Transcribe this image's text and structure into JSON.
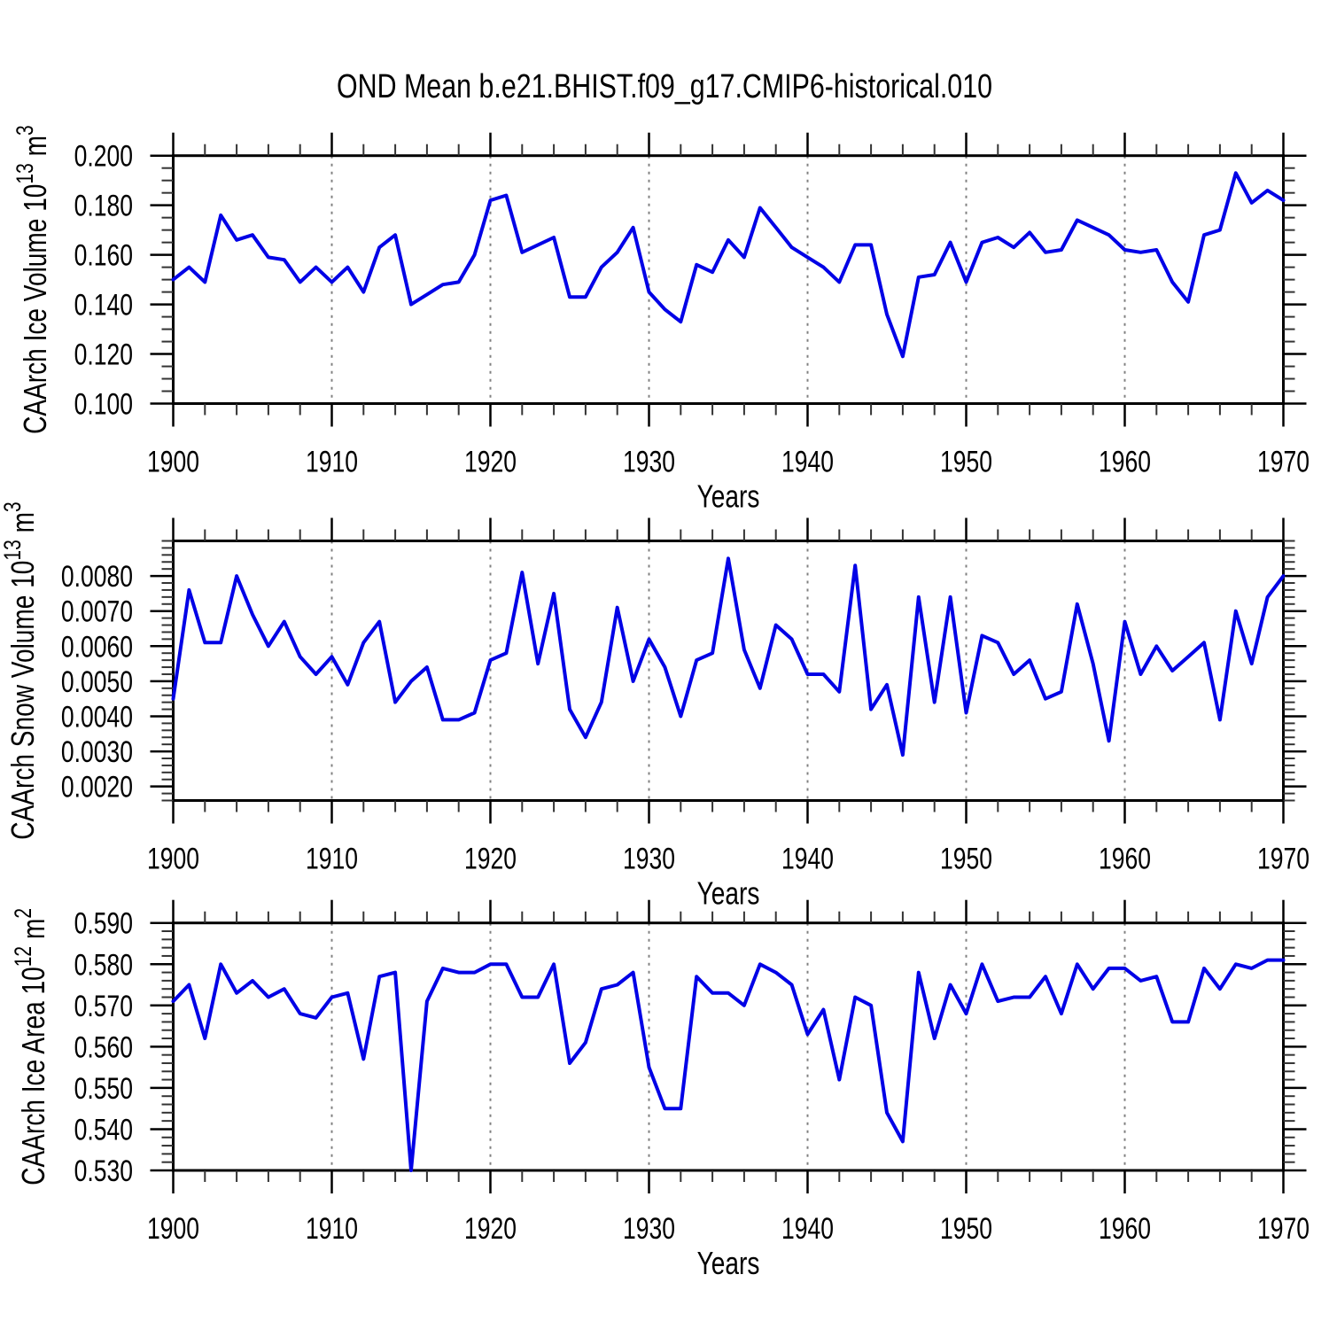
{
  "title": "OND Mean b.e21.BHIST.f09_g17.CMIP6-historical.010",
  "line_color": "#0101e6",
  "grid_color": "#808080",
  "axis_color": "#000000",
  "chart_data": [
    {
      "type": "line",
      "name": "ice-volume",
      "xlabel": "Years",
      "ylabel": "CAArch Ice Volume 10^13 m^3",
      "ylabel_parts": {
        "prefix": "CAArch Ice Volume 10",
        "exp": "13",
        "unit": " m",
        "unit_exp": "3"
      },
      "xlim": [
        1900,
        1970
      ],
      "ylim": [
        0.1,
        0.2
      ],
      "xticks": [
        1900,
        1910,
        1920,
        1930,
        1940,
        1950,
        1960,
        1970
      ],
      "xtick_labels": [
        "1900",
        "1910",
        "1920",
        "1930",
        "1940",
        "1950",
        "1960",
        "1970"
      ],
      "xtick_minor_step": 2,
      "grid_x": [
        1910,
        1920,
        1930,
        1940,
        1950,
        1960
      ],
      "ytick_values": [
        0.2,
        0.18,
        0.16,
        0.14,
        0.12,
        0.1
      ],
      "ytick_labels": [
        "0.200",
        "0.180",
        "0.160",
        "0.140",
        "0.120",
        "0.100"
      ],
      "ytick_minor_step": 0.005,
      "x": [
        1900,
        1901,
        1902,
        1903,
        1904,
        1905,
        1906,
        1907,
        1908,
        1909,
        1910,
        1911,
        1912,
        1913,
        1914,
        1915,
        1916,
        1917,
        1918,
        1919,
        1920,
        1921,
        1922,
        1923,
        1924,
        1925,
        1926,
        1927,
        1928,
        1929,
        1930,
        1931,
        1932,
        1933,
        1934,
        1935,
        1936,
        1937,
        1938,
        1939,
        1940,
        1941,
        1942,
        1943,
        1944,
        1945,
        1946,
        1947,
        1948,
        1949,
        1950,
        1951,
        1952,
        1953,
        1954,
        1955,
        1956,
        1957,
        1958,
        1959,
        1960,
        1961,
        1962,
        1963,
        1964,
        1965,
        1966,
        1967,
        1968,
        1969,
        1970
      ],
      "values": [
        0.15,
        0.155,
        0.149,
        0.176,
        0.166,
        0.168,
        0.159,
        0.158,
        0.149,
        0.155,
        0.149,
        0.155,
        0.145,
        0.163,
        0.168,
        0.14,
        0.144,
        0.148,
        0.149,
        0.16,
        0.182,
        0.184,
        0.161,
        0.164,
        0.167,
        0.143,
        0.143,
        0.155,
        0.161,
        0.171,
        0.145,
        0.138,
        0.133,
        0.156,
        0.153,
        0.166,
        0.159,
        0.179,
        0.171,
        0.163,
        0.159,
        0.155,
        0.149,
        0.164,
        0.164,
        0.136,
        0.119,
        0.151,
        0.152,
        0.165,
        0.149,
        0.165,
        0.167,
        0.163,
        0.169,
        0.161,
        0.162,
        0.174,
        0.171,
        0.168,
        0.162,
        0.161,
        0.162,
        0.149,
        0.141,
        0.168,
        0.17,
        0.193,
        0.181,
        0.186,
        0.182
      ]
    },
    {
      "type": "line",
      "name": "snow-volume",
      "xlabel": "Years",
      "ylabel": "CAArch Snow Volume 10^13 m^3",
      "ylabel_parts": {
        "prefix": "CAArch Snow Volume 10",
        "exp": "13",
        "unit": " m",
        "unit_exp": "3"
      },
      "xlim": [
        1900,
        1970
      ],
      "ylim": [
        0.0016,
        0.009
      ],
      "xticks": [
        1900,
        1910,
        1920,
        1930,
        1940,
        1950,
        1960,
        1970
      ],
      "xtick_labels": [
        "1900",
        "1910",
        "1920",
        "1930",
        "1940",
        "1950",
        "1960",
        "1970"
      ],
      "xtick_minor_step": 2,
      "grid_x": [
        1910,
        1920,
        1930,
        1940,
        1950,
        1960
      ],
      "ytick_values": [
        0.008,
        0.007,
        0.006,
        0.005,
        0.004,
        0.003,
        0.002
      ],
      "ytick_labels": [
        "0.0080",
        "0.0070",
        "0.0060",
        "0.0050",
        "0.0040",
        "0.0030",
        "0.0020"
      ],
      "ytick_minor_step": 0.0002,
      "x": [
        1900,
        1901,
        1902,
        1903,
        1904,
        1905,
        1906,
        1907,
        1908,
        1909,
        1910,
        1911,
        1912,
        1913,
        1914,
        1915,
        1916,
        1917,
        1918,
        1919,
        1920,
        1921,
        1922,
        1923,
        1924,
        1925,
        1926,
        1927,
        1928,
        1929,
        1930,
        1931,
        1932,
        1933,
        1934,
        1935,
        1936,
        1937,
        1938,
        1939,
        1940,
        1941,
        1942,
        1943,
        1944,
        1945,
        1946,
        1947,
        1948,
        1949,
        1950,
        1951,
        1952,
        1953,
        1954,
        1955,
        1956,
        1957,
        1958,
        1959,
        1960,
        1961,
        1962,
        1963,
        1964,
        1965,
        1966,
        1967,
        1968,
        1969,
        1970
      ],
      "values": [
        0.0045,
        0.0076,
        0.0061,
        0.0061,
        0.008,
        0.0069,
        0.006,
        0.0067,
        0.0057,
        0.0052,
        0.0057,
        0.0049,
        0.0061,
        0.0067,
        0.0044,
        0.005,
        0.0054,
        0.0039,
        0.0039,
        0.0041,
        0.0056,
        0.0058,
        0.0081,
        0.0055,
        0.0075,
        0.0042,
        0.0034,
        0.0044,
        0.0071,
        0.005,
        0.0062,
        0.0054,
        0.004,
        0.0056,
        0.0058,
        0.0085,
        0.0059,
        0.0048,
        0.0066,
        0.0062,
        0.0052,
        0.0052,
        0.0047,
        0.0083,
        0.0042,
        0.0049,
        0.0029,
        0.0074,
        0.0044,
        0.0074,
        0.0041,
        0.0063,
        0.0061,
        0.0052,
        0.0056,
        0.0045,
        0.0047,
        0.0072,
        0.0055,
        0.0033,
        0.0067,
        0.0052,
        0.006,
        0.0053,
        0.0057,
        0.0061,
        0.0039,
        0.007,
        0.0055,
        0.0074,
        0.008
      ]
    },
    {
      "type": "line",
      "name": "ice-area",
      "xlabel": "Years",
      "ylabel": "CAArch Ice Area 10^12 m^2",
      "ylabel_parts": {
        "prefix": "CAArch Ice Area 10",
        "exp": "12",
        "unit": " m",
        "unit_exp": "2"
      },
      "xlim": [
        1900,
        1970
      ],
      "ylim": [
        0.53,
        0.59
      ],
      "xticks": [
        1900,
        1910,
        1920,
        1930,
        1940,
        1950,
        1960,
        1970
      ],
      "xtick_labels": [
        "1900",
        "1910",
        "1920",
        "1930",
        "1940",
        "1950",
        "1960",
        "1970"
      ],
      "xtick_minor_step": 2,
      "grid_x": [
        1910,
        1920,
        1930,
        1940,
        1950,
        1960
      ],
      "ytick_values": [
        0.59,
        0.58,
        0.57,
        0.56,
        0.55,
        0.54,
        0.53
      ],
      "ytick_labels": [
        "0.590",
        "0.580",
        "0.570",
        "0.560",
        "0.550",
        "0.540",
        "0.530"
      ],
      "ytick_minor_step": 0.002,
      "x": [
        1900,
        1901,
        1902,
        1903,
        1904,
        1905,
        1906,
        1907,
        1908,
        1909,
        1910,
        1911,
        1912,
        1913,
        1914,
        1915,
        1916,
        1917,
        1918,
        1919,
        1920,
        1921,
        1922,
        1923,
        1924,
        1925,
        1926,
        1927,
        1928,
        1929,
        1930,
        1931,
        1932,
        1933,
        1934,
        1935,
        1936,
        1937,
        1938,
        1939,
        1940,
        1941,
        1942,
        1943,
        1944,
        1945,
        1946,
        1947,
        1948,
        1949,
        1950,
        1951,
        1952,
        1953,
        1954,
        1955,
        1956,
        1957,
        1958,
        1959,
        1960,
        1961,
        1962,
        1963,
        1964,
        1965,
        1966,
        1967,
        1968,
        1969,
        1970
      ],
      "values": [
        0.571,
        0.575,
        0.562,
        0.58,
        0.573,
        0.576,
        0.572,
        0.574,
        0.568,
        0.567,
        0.572,
        0.573,
        0.557,
        0.577,
        0.578,
        0.53,
        0.571,
        0.579,
        0.578,
        0.578,
        0.58,
        0.58,
        0.572,
        0.572,
        0.58,
        0.556,
        0.561,
        0.574,
        0.575,
        0.578,
        0.555,
        0.545,
        0.545,
        0.577,
        0.573,
        0.573,
        0.57,
        0.58,
        0.578,
        0.575,
        0.563,
        0.569,
        0.552,
        0.572,
        0.57,
        0.544,
        0.537,
        0.578,
        0.562,
        0.575,
        0.568,
        0.58,
        0.571,
        0.572,
        0.572,
        0.577,
        0.568,
        0.58,
        0.574,
        0.579,
        0.579,
        0.576,
        0.577,
        0.566,
        0.566,
        0.579,
        0.574,
        0.58,
        0.579,
        0.581,
        0.581
      ]
    }
  ]
}
